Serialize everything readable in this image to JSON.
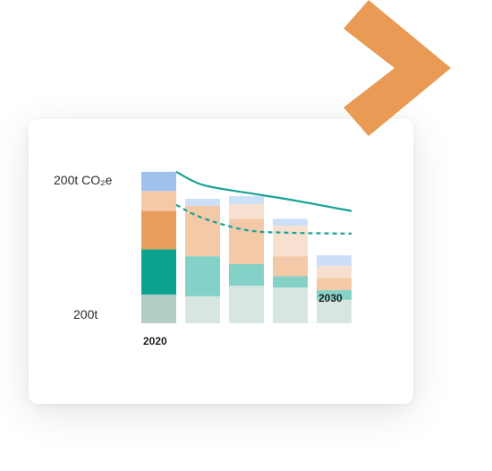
{
  "colors": {
    "chevron": "#E99B55",
    "accent_teal": "#16A394",
    "card": "#FFFFFF"
  },
  "icons": [
    "double-chevron-right-icon"
  ],
  "chart_data": {
    "type": "bar",
    "stacked": true,
    "title": "",
    "xlabel": "",
    "ylabel": "",
    "y_tick_labels": [
      "200t CO₂e",
      "200t"
    ],
    "category_labels": [
      "2020",
      "",
      "",
      "",
      "2030"
    ],
    "categories": [
      "2020",
      "",
      "",
      "",
      "2030"
    ],
    "series": [
      {
        "color": "#B2CCC6",
        "values": [
          0.33,
          0.0,
          0.0,
          0.0,
          0.0
        ]
      },
      {
        "color": "#D8E6E2",
        "values": [
          0.0,
          0.31,
          0.43,
          0.41,
          0.27
        ]
      },
      {
        "color": "#0DA38E",
        "values": [
          0.52,
          0.0,
          0.0,
          0.0,
          0.0
        ]
      },
      {
        "color": "#84D2C7",
        "values": [
          0.0,
          0.46,
          0.25,
          0.13,
          0.11
        ]
      },
      {
        "color": "#E99D5D",
        "values": [
          0.44,
          0.0,
          0.0,
          0.0,
          0.0
        ]
      },
      {
        "color": "#F4C9A8",
        "values": [
          0.23,
          0.58,
          0.52,
          0.23,
          0.14
        ]
      },
      {
        "color": "#F7E0CF",
        "values": [
          0.0,
          0.0,
          0.17,
          0.35,
          0.14
        ]
      },
      {
        "color": "#9EC1EE",
        "values": [
          0.22,
          0.0,
          0.0,
          0.0,
          0.0
        ]
      },
      {
        "color": "#CCDFF8",
        "values": [
          0.0,
          0.08,
          0.09,
          0.08,
          0.12
        ]
      }
    ],
    "trend_lines": [
      {
        "style": "solid",
        "color": "#16A394",
        "values": [
          1.74,
          1.59,
          1.5,
          1.42,
          1.29
        ]
      },
      {
        "style": "dashed",
        "color": "#16A394",
        "values": [
          1.36,
          1.21,
          1.07,
          1.04,
          1.03
        ]
      }
    ],
    "ylim": [
      0,
      1.78
    ],
    "grid": false,
    "legend": "none"
  }
}
